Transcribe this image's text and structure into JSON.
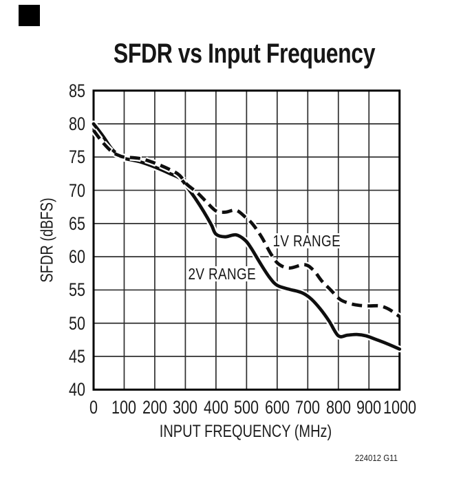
{
  "page": {
    "corner_mark_color": "#000000",
    "background_color": "#ffffff",
    "line_color": "#0f0f0f",
    "grid_color": "#2e2e2e"
  },
  "chart_data": {
    "type": "line",
    "title": "SFDR vs Input Frequency",
    "xlabel": "INPUT FREQUENCY (MHz)",
    "ylabel": "SFDR (dBFS)",
    "caption": "224012 G11",
    "xlim": [
      0,
      1000
    ],
    "ylim": [
      40,
      85
    ],
    "x_ticks": [
      0,
      100,
      200,
      300,
      400,
      500,
      600,
      700,
      800,
      900,
      1000
    ],
    "y_ticks": [
      85,
      80,
      75,
      70,
      65,
      60,
      55,
      50,
      45,
      40
    ],
    "grid": true,
    "legend_position": "inline-labels",
    "series": [
      {
        "name": "2V RANGE",
        "line_style": "solid",
        "color": "#0f0f0f",
        "x": [
          0,
          30,
          60,
          85,
          100,
          150,
          200,
          250,
          285,
          310,
          335,
          360,
          385,
          400,
          430,
          465,
          495,
          515,
          545,
          575,
          600,
          640,
          680,
          710,
          740,
          770,
          800,
          830,
          860,
          890,
          920,
          960,
          1000
        ],
        "y": [
          80.0,
          78.2,
          76.2,
          75.2,
          74.8,
          74.3,
          73.5,
          72.5,
          71.7,
          70.2,
          68.6,
          66.8,
          64.8,
          63.4,
          63.0,
          63.3,
          62.5,
          61.3,
          59.0,
          56.9,
          55.7,
          55.1,
          54.6,
          53.7,
          52.2,
          50.3,
          48.1,
          48.2,
          48.3,
          48.1,
          47.6,
          46.9,
          46.1
        ]
      },
      {
        "name": "1V RANGE",
        "line_style": "dashed",
        "color": "#0f0f0f",
        "x": [
          0,
          30,
          60,
          85,
          100,
          150,
          200,
          250,
          280,
          305,
          340,
          370,
          400,
          430,
          465,
          495,
          520,
          550,
          580,
          605,
          640,
          690,
          720,
          745,
          775,
          805,
          835,
          865,
          900,
          935,
          965,
          1000
        ],
        "y": [
          79.0,
          77.2,
          75.8,
          75.2,
          75.0,
          74.8,
          74.1,
          73.1,
          72.3,
          70.9,
          69.6,
          68.2,
          66.9,
          66.7,
          67.0,
          66.0,
          64.9,
          62.9,
          60.4,
          58.9,
          58.3,
          58.8,
          57.9,
          56.4,
          55.0,
          53.6,
          53.0,
          52.7,
          52.6,
          52.6,
          52.1,
          51.0
        ]
      }
    ]
  }
}
